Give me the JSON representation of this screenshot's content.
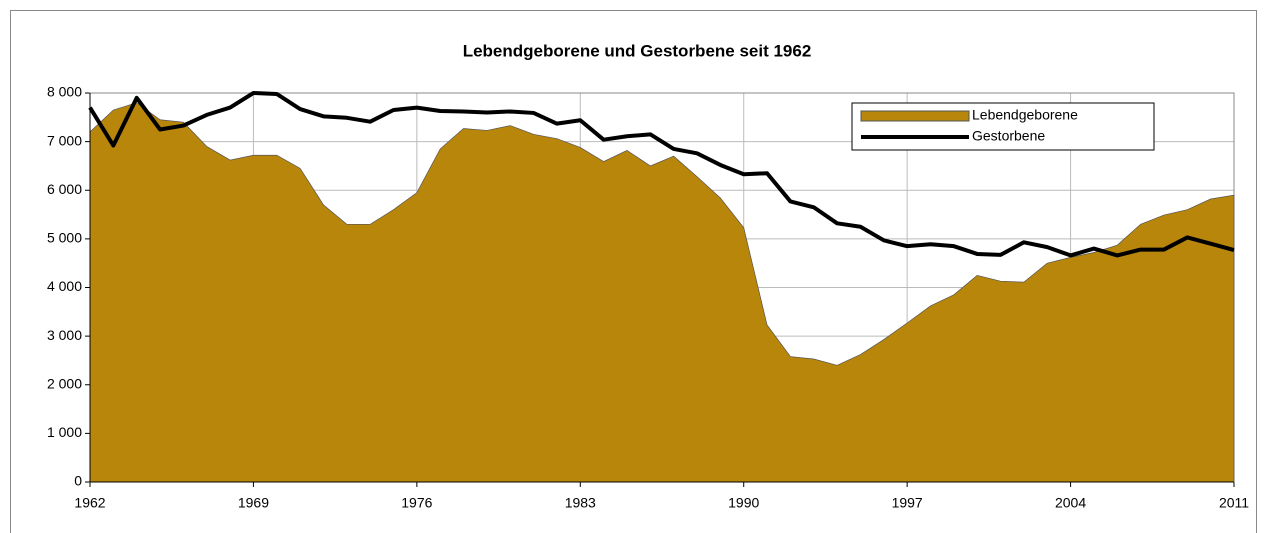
{
  "chart_data": {
    "type": "area_line",
    "title": "Lebendgeborene und Gestorbene seit 1962",
    "x": [
      1962,
      1963,
      1964,
      1965,
      1966,
      1967,
      1968,
      1969,
      1970,
      1971,
      1972,
      1973,
      1974,
      1975,
      1976,
      1977,
      1978,
      1979,
      1980,
      1981,
      1982,
      1983,
      1984,
      1985,
      1986,
      1987,
      1988,
      1989,
      1990,
      1991,
      1992,
      1993,
      1994,
      1995,
      1996,
      1997,
      1998,
      1999,
      2000,
      2001,
      2002,
      2003,
      2004,
      2005,
      2006,
      2007,
      2008,
      2009,
      2010,
      2011
    ],
    "series": [
      {
        "name": "Lebendgeborene",
        "kind": "area",
        "color": "#b8860b",
        "values": [
          7200,
          7650,
          7800,
          7450,
          7400,
          6900,
          6620,
          6720,
          6720,
          6450,
          5700,
          5300,
          5300,
          5600,
          5950,
          6850,
          7270,
          7230,
          7330,
          7150,
          7060,
          6880,
          6590,
          6820,
          6500,
          6700,
          6280,
          5840,
          5230,
          3230,
          2580,
          2530,
          2400,
          2620,
          2930,
          3270,
          3620,
          3850,
          4250,
          4130,
          4110,
          4500,
          4620,
          4720,
          4870,
          5300,
          5490,
          5600,
          5820,
          5900
        ]
      },
      {
        "name": "Gestorbene",
        "kind": "line",
        "color": "#000000",
        "values": [
          7700,
          6920,
          7900,
          7250,
          7330,
          7550,
          7700,
          8000,
          7980,
          7670,
          7520,
          7490,
          7410,
          7650,
          7700,
          7630,
          7620,
          7600,
          7620,
          7590,
          7370,
          7440,
          7040,
          7110,
          7150,
          6850,
          6760,
          6520,
          6330,
          6350,
          5770,
          5650,
          5320,
          5250,
          4970,
          4850,
          4890,
          4850,
          4690,
          4670,
          4930,
          4830,
          4660,
          4800,
          4660,
          4780,
          4780,
          5030,
          4900,
          4770
        ]
      }
    ],
    "xlim": [
      1962,
      2011
    ],
    "xticks": [
      1962,
      1969,
      1976,
      1983,
      1990,
      1997,
      2004,
      2011
    ],
    "ylim": [
      0,
      8000
    ],
    "yticks": [
      0,
      {
        "value": 1000,
        "label": "1 000"
      },
      {
        "value": 2000,
        "label": "2 000"
      },
      {
        "value": 3000,
        "label": "3 000"
      },
      {
        "value": 4000,
        "label": "4 000"
      },
      {
        "value": 5000,
        "label": "5 000"
      },
      {
        "value": 6000,
        "label": "6 000"
      },
      {
        "value": 7000,
        "label": "7 000"
      },
      {
        "value": 8000,
        "label": "8 000"
      }
    ],
    "grid": true
  }
}
